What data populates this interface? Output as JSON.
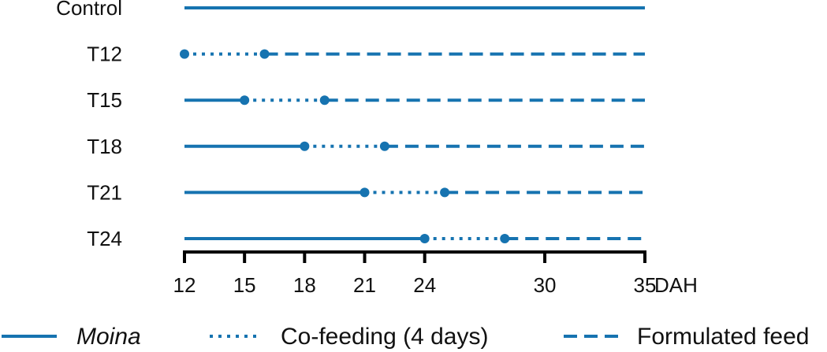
{
  "colors": {
    "series": "#1673b0",
    "axis": "#000000",
    "text": "#111111"
  },
  "chart_data": {
    "type": "timeline",
    "title": "",
    "x_unit": "DAH",
    "xlim": [
      12,
      35
    ],
    "x_ticks": [
      12,
      15,
      18,
      21,
      24,
      30,
      35
    ],
    "rows": [
      {
        "label": "Control",
        "segments": [
          {
            "series": "moina",
            "start": 12,
            "end": 35
          }
        ],
        "markers": []
      },
      {
        "label": "T12",
        "segments": [
          {
            "series": "cofeeding",
            "start": 12,
            "end": 16
          },
          {
            "series": "formulated",
            "start": 16,
            "end": 35
          }
        ],
        "markers": [
          12,
          16
        ]
      },
      {
        "label": "T15",
        "segments": [
          {
            "series": "moina",
            "start": 12,
            "end": 15
          },
          {
            "series": "cofeeding",
            "start": 15,
            "end": 19
          },
          {
            "series": "formulated",
            "start": 19,
            "end": 35
          }
        ],
        "markers": [
          15,
          19
        ]
      },
      {
        "label": "T18",
        "segments": [
          {
            "series": "moina",
            "start": 12,
            "end": 18
          },
          {
            "series": "cofeeding",
            "start": 18,
            "end": 22
          },
          {
            "series": "formulated",
            "start": 22,
            "end": 35
          }
        ],
        "markers": [
          18,
          22
        ]
      },
      {
        "label": "T21",
        "segments": [
          {
            "series": "moina",
            "start": 12,
            "end": 21
          },
          {
            "series": "cofeeding",
            "start": 21,
            "end": 25
          },
          {
            "series": "formulated",
            "start": 25,
            "end": 35
          }
        ],
        "markers": [
          21,
          25
        ]
      },
      {
        "label": "T24",
        "segments": [
          {
            "series": "moina",
            "start": 12,
            "end": 24
          },
          {
            "series": "cofeeding",
            "start": 24,
            "end": 28
          },
          {
            "series": "formulated",
            "start": 28,
            "end": 35
          }
        ],
        "markers": [
          24,
          28
        ]
      }
    ],
    "series": [
      {
        "key": "moina",
        "name": "Moina",
        "style": "solid"
      },
      {
        "key": "cofeeding",
        "name": "Co-feeding (4 days)",
        "style": "dotted"
      },
      {
        "key": "formulated",
        "name": "Formulated feed",
        "style": "dashed"
      }
    ],
    "legend": "bottom"
  }
}
